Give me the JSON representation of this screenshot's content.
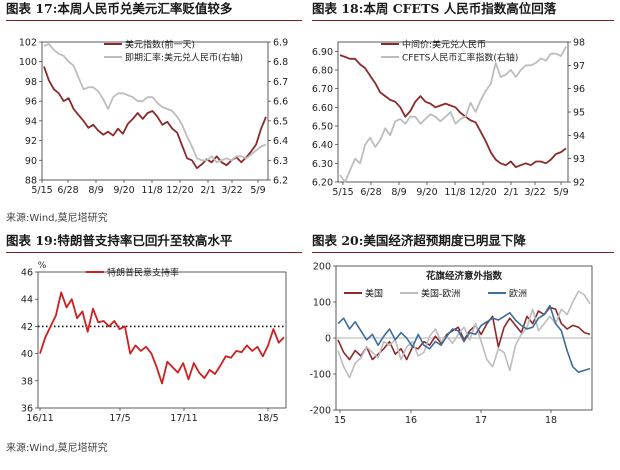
{
  "titles": {
    "fig17": "图表 17:本周人民币兑美元汇率贬值较多",
    "fig18": "图表 18:本周 CFETS 人民币指数高位回落",
    "fig19": "图表 19:特朗普支持率已回升至较高水平",
    "fig20": "图表 20:美国经济超预期度已明显下降"
  },
  "sources": {
    "top": "来源:Wind,莫尼塔研究",
    "bottom": "来源:Wind,莫尼塔研究"
  },
  "colors": {
    "dark_red": "#8b2a2a",
    "bright_red": "#cc1f1f",
    "gray": "#bdbdbd",
    "blue": "#3c6d9e",
    "rule": "#7a1e1e"
  },
  "chart_data": [
    {
      "id": "fig17",
      "type": "line",
      "x_ticks": [
        "5/15",
        "6/28",
        "8/9",
        "9/20",
        "11/8",
        "12/20",
        "2/1",
        "3/22",
        "5/9"
      ],
      "y_left": {
        "ticks": [
          "88",
          "90",
          "92",
          "94",
          "96",
          "98",
          "100",
          "102"
        ],
        "range": [
          88,
          102
        ]
      },
      "y_right": {
        "ticks": [
          "6.2",
          "6.3",
          "6.4",
          "6.5",
          "6.6",
          "6.7",
          "6.8",
          "6.9"
        ],
        "range": [
          6.2,
          6.9
        ]
      },
      "legend_position": "top-right",
      "series": [
        {
          "name": "美元指数(前一天)",
          "axis": "left",
          "color": "#8b2a2a",
          "values": [
            99.5,
            98.1,
            97.2,
            96.8,
            96.0,
            96.3,
            95.2,
            94.6,
            94.0,
            93.3,
            93.6,
            93.0,
            92.6,
            92.9,
            92.5,
            93.2,
            92.7,
            93.7,
            94.2,
            94.8,
            94.2,
            94.8,
            95.0,
            94.4,
            93.6,
            93.9,
            93.2,
            92.8,
            91.5,
            90.2,
            90.0,
            89.2,
            89.6,
            90.1,
            89.8,
            90.4,
            89.8,
            89.5,
            90.0,
            90.3,
            89.8,
            90.3,
            90.9,
            91.6,
            93.2,
            94.4
          ]
        },
        {
          "name": "即期汇率:美元兑人民币(右轴)",
          "axis": "right",
          "color": "#bdbdbd",
          "values": [
            6.88,
            6.89,
            6.86,
            6.84,
            6.83,
            6.8,
            6.78,
            6.72,
            6.66,
            6.67,
            6.67,
            6.65,
            6.61,
            6.56,
            6.62,
            6.64,
            6.64,
            6.63,
            6.62,
            6.6,
            6.6,
            6.62,
            6.62,
            6.59,
            6.57,
            6.56,
            6.55,
            6.52,
            6.48,
            6.42,
            6.37,
            6.31,
            6.3,
            6.3,
            6.32,
            6.29,
            6.3,
            6.31,
            6.3,
            6.32,
            6.32,
            6.31,
            6.33,
            6.35,
            6.37,
            6.38
          ]
        }
      ]
    },
    {
      "id": "fig18",
      "type": "line",
      "x_ticks": [
        "5/15",
        "6/28",
        "8/9",
        "9/20",
        "11/8",
        "12/20",
        "2/1",
        "3/22",
        "5/9"
      ],
      "y_left": {
        "ticks": [
          "6.20",
          "6.30",
          "6.40",
          "6.50",
          "6.60",
          "6.70",
          "6.80",
          "6.90"
        ],
        "range": [
          6.2,
          6.95
        ]
      },
      "y_right": {
        "ticks": [
          "92",
          "93",
          "94",
          "95",
          "96",
          "97",
          "98"
        ],
        "range": [
          92,
          98
        ]
      },
      "legend_position": "top-right",
      "series": [
        {
          "name": "中间价:美元兑人民币",
          "axis": "left",
          "color": "#8b2a2a",
          "values": [
            6.88,
            6.87,
            6.86,
            6.86,
            6.83,
            6.81,
            6.77,
            6.73,
            6.68,
            6.66,
            6.64,
            6.63,
            6.6,
            6.55,
            6.58,
            6.63,
            6.66,
            6.63,
            6.62,
            6.6,
            6.61,
            6.62,
            6.61,
            6.6,
            6.57,
            6.55,
            6.53,
            6.52,
            6.47,
            6.42,
            6.36,
            6.32,
            6.3,
            6.29,
            6.31,
            6.28,
            6.29,
            6.3,
            6.29,
            6.31,
            6.31,
            6.3,
            6.32,
            6.35,
            6.36,
            6.38
          ]
        },
        {
          "name": "CFETS人民币汇率指数(右轴)",
          "axis": "right",
          "color": "#bdbdbd",
          "values": [
            92.3,
            92.0,
            92.5,
            93.0,
            92.8,
            93.6,
            93.9,
            93.5,
            93.8,
            94.3,
            94.0,
            94.6,
            94.7,
            94.5,
            94.8,
            94.8,
            94.5,
            94.7,
            94.9,
            94.8,
            94.6,
            94.8,
            95.0,
            94.5,
            94.7,
            94.8,
            95.4,
            95.0,
            95.5,
            95.9,
            96.2,
            97.1,
            96.5,
            96.6,
            96.8,
            96.5,
            96.8,
            97.0,
            97.0,
            97.1,
            97.3,
            97.2,
            97.5,
            97.5,
            97.4,
            97.8
          ]
        }
      ]
    },
    {
      "id": "fig19",
      "type": "line",
      "unit": "%",
      "x_ticks": [
        "16/11",
        "17/5",
        "17/11",
        "18/5"
      ],
      "y_left": {
        "ticks": [
          "36",
          "38",
          "40",
          "42",
          "44",
          "46"
        ],
        "range": [
          36,
          46
        ]
      },
      "reference_line": 42,
      "legend_position": "top-center",
      "series": [
        {
          "name": "特朗普民意支持率",
          "color": "#cc1f1f",
          "values": [
            40.0,
            41.2,
            42.0,
            42.8,
            44.5,
            43.4,
            44.0,
            42.6,
            43.1,
            41.6,
            43.3,
            42.3,
            42.4,
            42.0,
            42.4,
            41.8,
            42.0,
            40.0,
            40.6,
            40.2,
            40.5,
            40.0,
            39.0,
            37.8,
            39.4,
            39.0,
            38.6,
            39.3,
            38.1,
            39.3,
            38.6,
            38.2,
            38.8,
            38.5,
            39.1,
            39.8,
            39.7,
            40.2,
            40.1,
            40.6,
            40.2,
            40.5,
            39.8,
            40.6,
            41.8,
            40.8,
            41.2
          ]
        }
      ]
    },
    {
      "id": "fig20",
      "type": "line",
      "title": "花旗经济意外指数",
      "x_ticks": [
        "15",
        "16",
        "17",
        "18"
      ],
      "y_left": {
        "ticks": [
          "-200",
          "-100",
          "0",
          "100",
          "200"
        ],
        "range": [
          -200,
          200
        ]
      },
      "legend_position": "top",
      "series": [
        {
          "name": "美国",
          "color": "#8b2a2a",
          "values": [
            -5,
            -40,
            -60,
            -35,
            -50,
            -25,
            -60,
            -45,
            -30,
            -10,
            -45,
            -30,
            -60,
            -25,
            -30,
            -10,
            -20,
            5,
            -15,
            10,
            20,
            30,
            -5,
            20,
            35,
            10,
            40,
            60,
            -25,
            30,
            55,
            35,
            15,
            60,
            40,
            75,
            65,
            85,
            80,
            40,
            25,
            35,
            30,
            15,
            10
          ]
        },
        {
          "name": "美国-欧洲",
          "color": "#bdbdbd",
          "values": [
            -35,
            -80,
            -110,
            -70,
            -55,
            -25,
            -40,
            -55,
            -10,
            -20,
            -5,
            -60,
            -25,
            -10,
            -50,
            -40,
            5,
            25,
            -10,
            5,
            -15,
            10,
            30,
            -5,
            40,
            -10,
            -60,
            -80,
            -30,
            -40,
            -90,
            -20,
            10,
            30,
            80,
            20,
            40,
            60,
            40,
            80,
            65,
            100,
            130,
            120,
            95
          ]
        },
        {
          "name": "欧洲",
          "color": "#3c6d9e",
          "values": [
            40,
            55,
            25,
            45,
            20,
            -5,
            10,
            -20,
            5,
            25,
            -5,
            15,
            0,
            -25,
            10,
            -20,
            -30,
            -10,
            -20,
            5,
            25,
            20,
            -10,
            15,
            10,
            35,
            45,
            55,
            50,
            60,
            70,
            50,
            35,
            25,
            30,
            55,
            65,
            90,
            40,
            20,
            -35,
            -80,
            -95,
            -90,
            -85
          ]
        }
      ]
    }
  ]
}
